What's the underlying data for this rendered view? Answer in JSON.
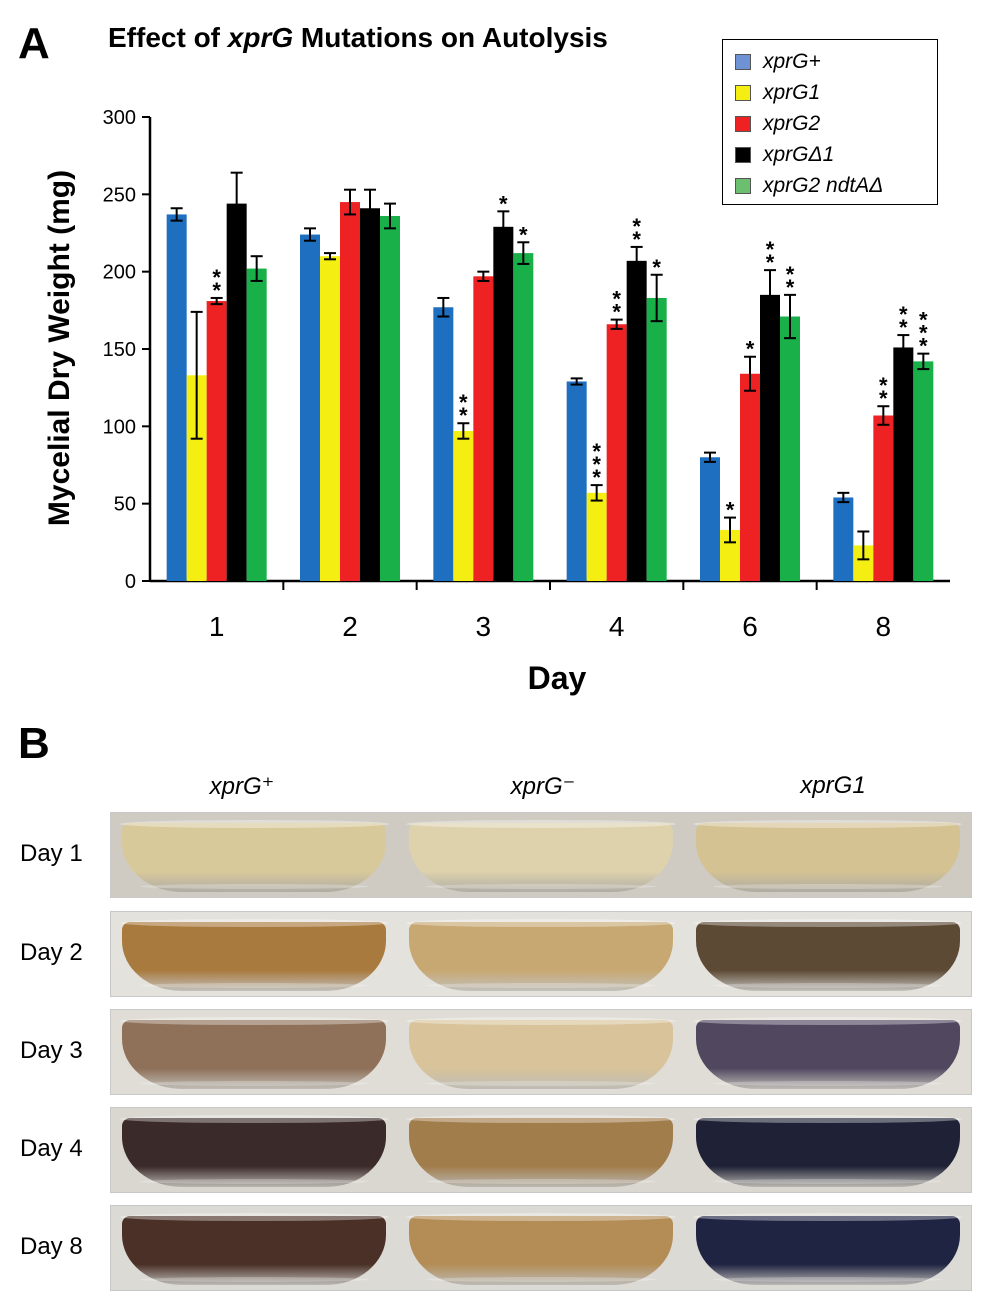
{
  "panel_a": {
    "letter": "A",
    "title_prefix": "Effect of ",
    "title_gene": "xprG",
    "title_suffix": " Mutations on Autolysis"
  },
  "panel_b": {
    "letter": "B",
    "columns": [
      "xprG⁺",
      "xprG⁻",
      "xprG1"
    ],
    "rows": [
      {
        "label": "Day 1",
        "colors": [
          "#d8c99a",
          "#ddd2ac",
          "#d4c292"
        ],
        "bg": "#cfcbc2"
      },
      {
        "label": "Day 2",
        "colors": [
          "#a97a3e",
          "#c8a872",
          "#5d4a35"
        ],
        "bg": "#e4e2dc"
      },
      {
        "label": "Day 3",
        "colors": [
          "#8f7058",
          "#d8c39a",
          "#514860"
        ],
        "bg": "#e0ddd6"
      },
      {
        "label": "Day 4",
        "colors": [
          "#3b2a2a",
          "#a27d4c",
          "#1f2236"
        ],
        "bg": "#dad7d0"
      },
      {
        "label": "Day 8",
        "colors": [
          "#4a3026",
          "#b48d56",
          "#1f2442"
        ],
        "bg": "#dcdad5"
      }
    ]
  },
  "chart_data": {
    "type": "bar",
    "title": "Effect of xprG Mutations on Autolysis",
    "xlabel": "Day",
    "ylabel": "Mycelial Dry Weight (mg)",
    "ylim": [
      0,
      300
    ],
    "yticks": [
      0,
      50,
      100,
      150,
      200,
      250,
      300
    ],
    "categories": [
      "1",
      "2",
      "3",
      "4",
      "6",
      "8"
    ],
    "legend_position": "top-right",
    "series": [
      {
        "name": "xprG+",
        "color": "#1f6fc1",
        "legend_color": "#6f92d4",
        "values": [
          237,
          224,
          177,
          129,
          80,
          54
        ],
        "errors": [
          4,
          4,
          6,
          2,
          3,
          3
        ],
        "stars": [
          "",
          "",
          "",
          "",
          "",
          ""
        ]
      },
      {
        "name": "xprG1",
        "color": "#f5ee12",
        "legend_color": "#f5ee12",
        "values": [
          133,
          210,
          97,
          57,
          33,
          23
        ],
        "errors": [
          41,
          2,
          5,
          5,
          8,
          9
        ],
        "stars": [
          "",
          "",
          "**",
          "***",
          "*",
          ""
        ]
      },
      {
        "name": "xprG2",
        "color": "#ee2222",
        "legend_color": "#ee2222",
        "values": [
          181,
          245,
          197,
          166,
          134,
          107
        ],
        "errors": [
          2,
          8,
          3,
          3,
          11,
          6
        ],
        "stars": [
          "**",
          "",
          "",
          "**",
          "*",
          "**"
        ]
      },
      {
        "name": "xprGΔ1",
        "color": "#000000",
        "legend_color": "#000000",
        "values": [
          244,
          241,
          229,
          207,
          185,
          151
        ],
        "errors": [
          20,
          12,
          10,
          9,
          16,
          8
        ],
        "stars": [
          "",
          "",
          "*",
          "**",
          "**",
          "**"
        ]
      },
      {
        "name": "xprG2 ndtAΔ",
        "color": "#19b04a",
        "legend_color": "#6cbf6e",
        "values": [
          202,
          236,
          212,
          183,
          171,
          142
        ],
        "errors": [
          8,
          8,
          7,
          15,
          14,
          5
        ],
        "stars": [
          "",
          "",
          "*",
          "*",
          "**",
          "***"
        ]
      }
    ]
  }
}
